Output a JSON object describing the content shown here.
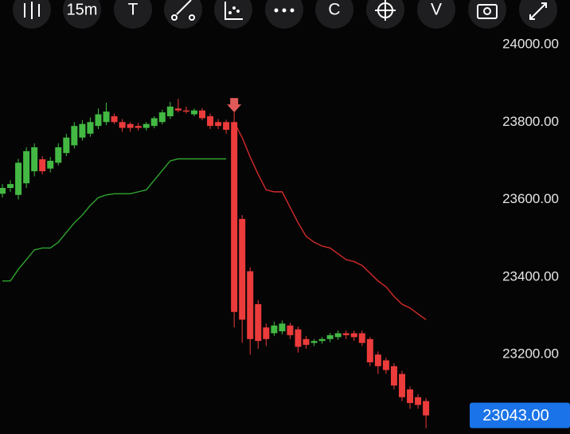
{
  "toolbar": {
    "interval": "15m",
    "buttons": [
      "T",
      "C",
      "V"
    ]
  },
  "chart_data": {
    "type": "candlestick",
    "up_color": "#43b943",
    "down_color": "#ec3b3b",
    "open": [
      23615,
      23630,
      23612,
      23642,
      23673,
      23704,
      23680,
      23695,
      23720,
      23740,
      23760,
      23770,
      23790,
      23800,
      23815,
      23800,
      23795,
      23790,
      23785,
      23790,
      23800,
      23815,
      23835,
      23830,
      23820,
      23830,
      23815,
      23800,
      23800,
      23800,
      23550,
      23415,
      23330,
      23270,
      23255,
      23260,
      23275,
      23265,
      23240,
      23230,
      23235,
      23240,
      23245,
      23255,
      23255,
      23255,
      23240,
      23200,
      23185,
      23170,
      23150,
      23110,
      23090,
      23080
    ],
    "high": [
      23640,
      23650,
      23705,
      23735,
      23745,
      23712,
      23710,
      23745,
      23770,
      23800,
      23805,
      23812,
      23835,
      23850,
      23822,
      23808,
      23800,
      23798,
      23800,
      23815,
      23832,
      23852,
      23860,
      23840,
      23835,
      23836,
      23822,
      23808,
      23806,
      23825,
      23560,
      23425,
      23340,
      23280,
      23285,
      23288,
      23282,
      23272,
      23248,
      23240,
      23245,
      23256,
      23262,
      23262,
      23262,
      23262,
      23245,
      23208,
      23192,
      23178,
      23158,
      23118,
      23098,
      23088
    ],
    "low": [
      23605,
      23620,
      23600,
      23630,
      23660,
      23665,
      23670,
      23688,
      23712,
      23732,
      23752,
      23762,
      23782,
      23792,
      23795,
      23775,
      23775,
      23778,
      23778,
      23784,
      23794,
      23808,
      23825,
      23822,
      23815,
      23805,
      23782,
      23782,
      23770,
      23270,
      23230,
      23200,
      23215,
      23222,
      23248,
      23252,
      23240,
      23205,
      23215,
      23222,
      23228,
      23232,
      23238,
      23240,
      23235,
      23222,
      23170,
      23150,
      23150,
      23110,
      23080,
      23060,
      23060,
      23010
    ],
    "close": [
      23630,
      23640,
      23695,
      23725,
      23735,
      23673,
      23700,
      23735,
      23760,
      23790,
      23795,
      23800,
      23820,
      23827,
      23800,
      23785,
      23785,
      23785,
      23795,
      23810,
      23825,
      23840,
      23830,
      23828,
      23830,
      23810,
      23790,
      23790,
      23780,
      23310,
      23290,
      23240,
      23235,
      23240,
      23275,
      23280,
      23250,
      23220,
      23225,
      23235,
      23240,
      23250,
      23255,
      23250,
      23245,
      23230,
      23180,
      23170,
      23160,
      23120,
      23090,
      23075,
      23070,
      23043
    ],
    "series": [
      {
        "name": "supertrend-up",
        "color": "#2fa52f",
        "values": [
          23390,
          23390,
          23420,
          23445,
          23470,
          23475,
          23475,
          23490,
          23515,
          23540,
          23560,
          23585,
          23605,
          23612,
          23615,
          23615,
          23615,
          23620,
          23625,
          23650,
          23675,
          23700,
          23705,
          23705,
          23705,
          23705,
          23705,
          23705,
          23705,
          null,
          null,
          null,
          null,
          null,
          null,
          null,
          null,
          null,
          null,
          null,
          null,
          null,
          null,
          null,
          null,
          null,
          null,
          null,
          null,
          null,
          null,
          null,
          null,
          null
        ]
      },
      {
        "name": "supertrend-down",
        "color": "#d42a2a",
        "values": [
          null,
          null,
          null,
          null,
          null,
          null,
          null,
          null,
          null,
          null,
          null,
          null,
          null,
          null,
          null,
          null,
          null,
          null,
          null,
          null,
          null,
          null,
          null,
          null,
          null,
          null,
          null,
          null,
          null,
          23800,
          23760,
          23710,
          23665,
          23625,
          23620,
          23620,
          23580,
          23540,
          23505,
          23490,
          23480,
          23475,
          23460,
          23445,
          23440,
          23430,
          23410,
          23390,
          23375,
          23350,
          23330,
          23320,
          23305,
          23290
        ]
      }
    ],
    "ylim": [
      22995,
      24115
    ],
    "yticks": [
      {
        "value": 24000,
        "label": "24000.00"
      },
      {
        "value": 23800,
        "label": "23800.00"
      },
      {
        "value": 23600,
        "label": "23600.00"
      },
      {
        "value": 23400,
        "label": "23400.00"
      },
      {
        "value": 23200,
        "label": "23200.00"
      }
    ],
    "last_price": {
      "value": 23043,
      "label": "23043.00"
    }
  }
}
